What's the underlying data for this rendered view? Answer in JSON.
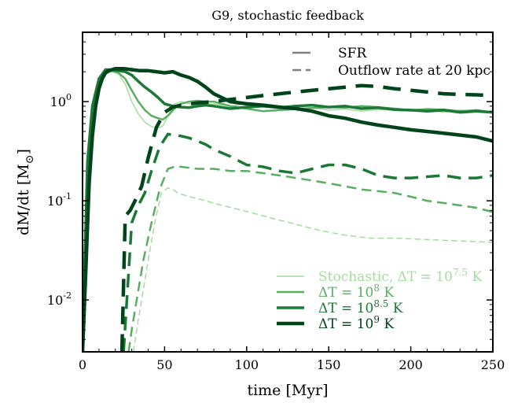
{
  "chart_data": {
    "type": "line",
    "title": "G9, stochastic feedback",
    "xlabel": "time [Myr]",
    "ylabel": "dM/dt [M",
    "ylabel_sub": "⊙",
    "ylabel_close": "]",
    "xlim": [
      0,
      250
    ],
    "ylim": [
      0.003,
      5
    ],
    "yscale": "log",
    "grid": false,
    "x_ticks": [
      "0",
      "50",
      "100",
      "150",
      "200",
      "250"
    ],
    "y_ticks": [
      {
        "value": 1,
        "label": "10",
        "exp": "0"
      },
      {
        "value": 0.1,
        "label": "10",
        "exp": "-1"
      },
      {
        "value": 0.01,
        "label": "10",
        "exp": "-2"
      }
    ],
    "style_legend": {
      "placement": "top-right",
      "items": [
        {
          "label": "SFR",
          "dash": "solid"
        },
        {
          "label": "Outflow rate at 20 kpc",
          "dash": "dashed"
        }
      ]
    },
    "series_legend": {
      "placement": "lower-right",
      "items": [
        {
          "text": "Stochastic, ΔT = 10",
          "exp": "7.5",
          "unit": " K"
        },
        {
          "text": "ΔT = 10",
          "exp": "8",
          "unit": " K"
        },
        {
          "text": "ΔT = 10",
          "exp": "8.5",
          "unit": " K"
        },
        {
          "text": "ΔT = 10",
          "exp": "9",
          "unit": " K"
        }
      ]
    },
    "series": [
      {
        "color": "#a6dba0",
        "width": 1.5,
        "sfr": {
          "x": [
            0,
            3,
            6,
            10,
            14,
            18,
            22,
            26,
            30,
            34,
            38,
            42,
            46,
            49,
            52,
            56,
            60,
            65,
            70,
            75,
            80,
            90,
            100,
            110,
            120,
            130,
            140,
            150,
            160,
            170,
            180,
            190,
            200,
            210,
            220,
            230,
            240,
            250
          ],
          "y": [
            0.004,
            0.2,
            0.8,
            1.5,
            1.9,
            2.0,
            1.9,
            1.5,
            1.0,
            0.75,
            0.62,
            0.56,
            0.54,
            0.57,
            0.72,
            0.95,
            1.0,
            0.95,
            1.0,
            0.92,
            0.95,
            0.9,
            0.95,
            0.88,
            0.9,
            0.85,
            0.87,
            0.82,
            0.84,
            0.8,
            0.83,
            0.82,
            0.8,
            0.82,
            0.78,
            0.82,
            0.8,
            0.78
          ]
        },
        "outflow": {
          "x": [
            31,
            33,
            36,
            40,
            44,
            48,
            52,
            55,
            58,
            65,
            75,
            85,
            100,
            115,
            130,
            145,
            160,
            175,
            190,
            205,
            220,
            235,
            250
          ],
          "y": [
            0.003,
            0.005,
            0.01,
            0.025,
            0.06,
            0.12,
            0.135,
            0.13,
            0.12,
            0.11,
            0.1,
            0.09,
            0.078,
            0.067,
            0.058,
            0.05,
            0.045,
            0.042,
            0.042,
            0.041,
            0.04,
            0.039,
            0.038
          ]
        }
      },
      {
        "color": "#5aae61",
        "width": 2.5,
        "sfr": {
          "x": [
            0,
            3,
            6,
            10,
            14,
            18,
            22,
            26,
            30,
            34,
            38,
            42,
            46,
            49,
            52,
            56,
            60,
            65,
            70,
            75,
            80,
            90,
            100,
            110,
            120,
            130,
            140,
            150,
            160,
            170,
            180,
            190,
            200,
            210,
            220,
            230,
            240,
            250
          ],
          "y": [
            0.004,
            0.22,
            0.85,
            1.6,
            2.0,
            2.05,
            1.95,
            1.7,
            1.3,
            1.0,
            0.82,
            0.72,
            0.68,
            0.66,
            0.72,
            0.85,
            0.95,
            1.0,
            1.02,
            1.0,
            1.0,
            0.9,
            0.85,
            0.8,
            0.82,
            0.84,
            0.86,
            0.88,
            0.87,
            0.9,
            0.88,
            0.85,
            0.82,
            0.84,
            0.83,
            0.8,
            0.82,
            0.78
          ]
        },
        "outflow": {
          "x": [
            28,
            30,
            33,
            37,
            42,
            47,
            52,
            56,
            60,
            65,
            70,
            75,
            80,
            90,
            100,
            110,
            120,
            130,
            140,
            150,
            160,
            170,
            180,
            190,
            200,
            210,
            220,
            230,
            240,
            250
          ],
          "y": [
            0.003,
            0.005,
            0.01,
            0.025,
            0.06,
            0.13,
            0.21,
            0.22,
            0.22,
            0.215,
            0.21,
            0.21,
            0.21,
            0.2,
            0.2,
            0.19,
            0.18,
            0.17,
            0.16,
            0.15,
            0.14,
            0.13,
            0.125,
            0.12,
            0.11,
            0.1,
            0.095,
            0.09,
            0.085,
            0.077
          ]
        }
      },
      {
        "color": "#1b7837",
        "width": 3.5,
        "sfr": {
          "x": [
            0,
            3,
            6,
            10,
            14,
            18,
            22,
            26,
            30,
            34,
            38,
            42,
            46,
            50,
            55,
            60,
            65,
            70,
            75,
            80,
            90,
            100,
            110,
            120,
            130,
            140,
            150,
            160,
            170,
            180,
            190,
            200,
            210,
            220,
            230,
            240,
            250
          ],
          "y": [
            0.004,
            0.25,
            0.9,
            1.7,
            2.1,
            2.1,
            2.05,
            2.0,
            1.85,
            1.6,
            1.4,
            1.25,
            1.1,
            0.95,
            0.9,
            0.88,
            0.87,
            0.9,
            0.92,
            0.9,
            0.85,
            0.88,
            0.9,
            0.87,
            0.9,
            0.92,
            0.88,
            0.9,
            0.85,
            0.87,
            0.83,
            0.82,
            0.8,
            0.82,
            0.78,
            0.8,
            0.78
          ]
        },
        "outflow": {
          "x": [
            25,
            27,
            30,
            34,
            38,
            42,
            47,
            52,
            56,
            60,
            65,
            70,
            75,
            80,
            90,
            100,
            110,
            120,
            130,
            140,
            150,
            160,
            170,
            180,
            190,
            200,
            210,
            220,
            230,
            240,
            250
          ],
          "y": [
            0.003,
            0.01,
            0.06,
            0.09,
            0.12,
            0.2,
            0.35,
            0.47,
            0.46,
            0.45,
            0.43,
            0.4,
            0.37,
            0.33,
            0.28,
            0.23,
            0.22,
            0.2,
            0.19,
            0.21,
            0.23,
            0.23,
            0.21,
            0.18,
            0.17,
            0.17,
            0.175,
            0.18,
            0.17,
            0.17,
            0.18
          ]
        }
      },
      {
        "color": "#00441b",
        "width": 4.5,
        "sfr": {
          "x": [
            0,
            2,
            4,
            6,
            8,
            10,
            12,
            14,
            16,
            18,
            20,
            25,
            30,
            35,
            40,
            45,
            50,
            55,
            60,
            65,
            70,
            75,
            80,
            90,
            100,
            110,
            120,
            130,
            140,
            150,
            160,
            170,
            180,
            190,
            200,
            210,
            220,
            230,
            240,
            250
          ],
          "y": [
            0.003,
            0.02,
            0.15,
            0.45,
            0.9,
            1.35,
            1.7,
            1.95,
            2.05,
            2.1,
            2.15,
            2.15,
            2.1,
            2.05,
            2.05,
            2.0,
            1.95,
            2.0,
            1.85,
            1.75,
            1.6,
            1.4,
            1.2,
            1.0,
            0.95,
            0.92,
            0.88,
            0.85,
            0.8,
            0.72,
            0.68,
            0.62,
            0.58,
            0.55,
            0.52,
            0.5,
            0.48,
            0.46,
            0.44,
            0.4
          ]
        },
        "outflow": {
          "x": [
            24,
            26,
            29,
            32,
            36,
            40,
            45,
            50,
            55,
            60,
            70,
            80,
            90,
            100,
            110,
            120,
            130,
            140,
            150,
            160,
            170,
            180,
            190,
            200,
            210,
            220,
            230,
            240,
            250
          ],
          "y": [
            0.003,
            0.07,
            0.08,
            0.1,
            0.14,
            0.27,
            0.55,
            0.78,
            0.88,
            0.92,
            0.97,
            1.0,
            1.05,
            1.1,
            1.15,
            1.2,
            1.25,
            1.3,
            1.35,
            1.4,
            1.45,
            1.42,
            1.35,
            1.3,
            1.25,
            1.2,
            1.18,
            1.17,
            1.15
          ]
        }
      }
    ]
  }
}
